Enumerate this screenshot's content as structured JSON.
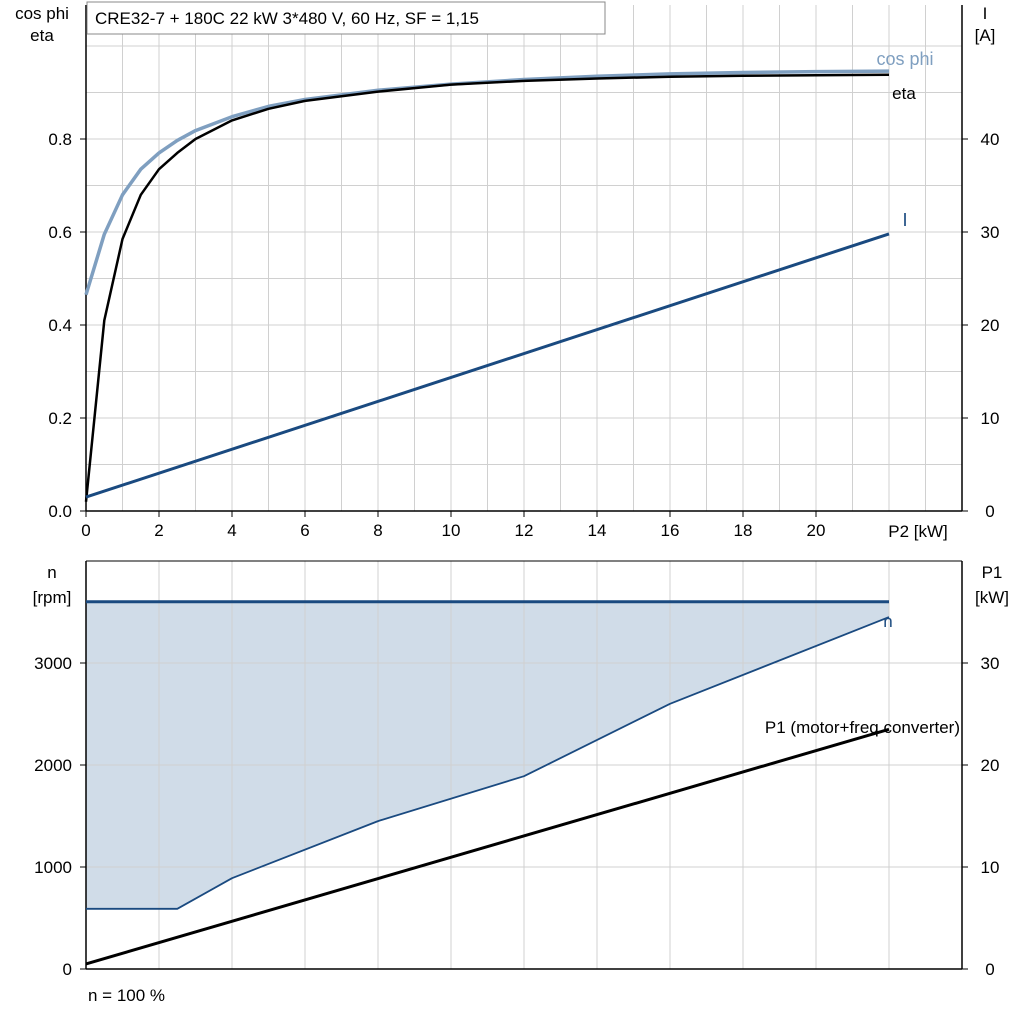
{
  "top_chart": {
    "title": "CRE32-7 + 180C   22 kW   3*480 V, 60 Hz, SF = 1,15",
    "left_axis_label": [
      "cos phi",
      "eta"
    ],
    "right_axis_label": [
      "I",
      "[A]"
    ],
    "xlabel": "P2 [kW]",
    "x_ticks": [
      0,
      2,
      4,
      6,
      8,
      10,
      12,
      14,
      16,
      18,
      20
    ],
    "y_ticks": [
      "0.0",
      "0.2",
      "0.4",
      "0.6",
      "0.8"
    ],
    "y2_ticks": [
      "0",
      "10",
      "20",
      "30",
      "40"
    ]
  },
  "bottom_chart": {
    "left_axis_label": [
      "n",
      "[rpm]"
    ],
    "right_axis_label": [
      "P1",
      "[kW]"
    ],
    "y_ticks": [
      "0",
      "1000",
      "2000",
      "3000"
    ],
    "y2_ticks": [
      "0",
      "10",
      "20",
      "30"
    ],
    "footnote": "n = 100 %"
  },
  "colors": {
    "cos_phi": "#7f9fc0",
    "eta": "#000000",
    "current": "#1a4a80",
    "speed": "#1a4a80",
    "speed_range_fill": "#d0dce8",
    "p1": "#000000",
    "grid": "#d0d0d0"
  },
  "chart_data": [
    {
      "type": "line",
      "title": "CRE32-7 + 180C   22 kW   3*480 V, 60 Hz, SF = 1,15",
      "xlabel": "P2 [kW]",
      "ylabel": "cos phi / eta",
      "y2label": "I [A]",
      "xlim": [
        0,
        24
      ],
      "ylim": [
        0,
        1.0
      ],
      "y2lim": [
        0,
        50
      ],
      "grid": true,
      "series": [
        {
          "name": "cos phi",
          "axis": "left",
          "x": [
            0,
            0.5,
            1,
            1.5,
            2,
            2.5,
            3,
            4,
            5,
            6,
            8,
            10,
            12,
            14,
            16,
            18,
            20,
            22
          ],
          "y": [
            0.465,
            0.595,
            0.68,
            0.735,
            0.77,
            0.797,
            0.818,
            0.848,
            0.87,
            0.885,
            0.905,
            0.918,
            0.928,
            0.935,
            0.94,
            0.943,
            0.945,
            0.946
          ]
        },
        {
          "name": "eta",
          "axis": "left",
          "x": [
            0,
            0.5,
            1,
            1.5,
            2,
            2.5,
            3,
            4,
            5,
            6,
            8,
            10,
            12,
            14,
            16,
            18,
            20,
            22
          ],
          "y": [
            0.02,
            0.41,
            0.585,
            0.68,
            0.735,
            0.77,
            0.8,
            0.84,
            0.865,
            0.882,
            0.902,
            0.917,
            0.925,
            0.93,
            0.934,
            0.936,
            0.937,
            0.938
          ]
        },
        {
          "name": "I",
          "axis": "right",
          "x": [
            0,
            22
          ],
          "y": [
            1.5,
            29.8
          ]
        }
      ]
    },
    {
      "type": "area",
      "footnote": "n = 100 %",
      "xlim": [
        0,
        24
      ],
      "ylabel": "n [rpm]",
      "ylim": [
        0,
        4000
      ],
      "y2label": "P1 [kW]",
      "y2lim": [
        0,
        40
      ],
      "grid": true,
      "series": [
        {
          "name": "n",
          "axis": "left",
          "x": [
            0,
            22
          ],
          "y": [
            3600,
            3600
          ]
        },
        {
          "name": "",
          "axis": "left",
          "x": [
            0,
            2.5,
            4,
            8,
            12,
            16,
            22
          ],
          "y": [
            590,
            590,
            890,
            1450,
            1890,
            2600,
            3450
          ]
        },
        {
          "name": "P1 (motor+freq.converter)",
          "axis": "right",
          "x": [
            0,
            22
          ],
          "y": [
            0.5,
            23.5
          ]
        }
      ]
    }
  ]
}
